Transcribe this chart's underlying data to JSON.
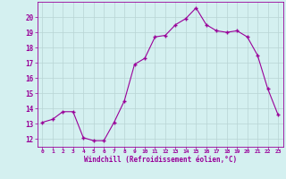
{
  "x": [
    0,
    1,
    2,
    3,
    4,
    5,
    6,
    7,
    8,
    9,
    10,
    11,
    12,
    13,
    14,
    15,
    16,
    17,
    18,
    19,
    20,
    21,
    22,
    23
  ],
  "y": [
    13.1,
    13.3,
    13.8,
    13.8,
    12.1,
    11.9,
    11.9,
    13.1,
    14.5,
    16.9,
    17.3,
    18.7,
    18.8,
    19.5,
    19.9,
    20.6,
    19.5,
    19.1,
    19.0,
    19.1,
    18.7,
    17.5,
    15.3,
    13.6
  ],
  "line_color": "#990099",
  "marker": "+",
  "marker_color": "#990099",
  "bg_color": "#d4f0f0",
  "grid_color": "#b8d4d4",
  "xlabel": "Windchill (Refroidissement éolien,°C)",
  "xlabel_color": "#990099",
  "tick_color": "#990099",
  "ylim": [
    11.5,
    21.0
  ],
  "yticks": [
    12,
    13,
    14,
    15,
    16,
    17,
    18,
    19,
    20
  ],
  "xlim": [
    -0.5,
    23.5
  ],
  "xticks": [
    0,
    1,
    2,
    3,
    4,
    5,
    6,
    7,
    8,
    9,
    10,
    11,
    12,
    13,
    14,
    15,
    16,
    17,
    18,
    19,
    20,
    21,
    22,
    23
  ]
}
